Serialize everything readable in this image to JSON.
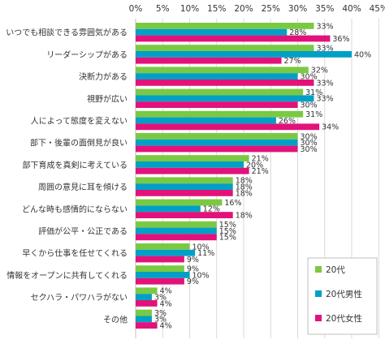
{
  "chart_data": {
    "type": "bar",
    "orientation": "horizontal",
    "title": "",
    "xlabel": "",
    "ylabel": "",
    "xlim": [
      0,
      45
    ],
    "x_ticks": [
      "0%",
      "5%",
      "10%",
      "15%",
      "20%",
      "25%",
      "30%",
      "35%",
      "40%",
      "45%"
    ],
    "grid": true,
    "legend_position": "bottom-right",
    "categories": [
      "いつでも相談できる雰囲気がある",
      "リーダーシップがある",
      "決断力がある",
      "視野が広い",
      "人によって態度を変えない",
      "部下・後輩の面倒見が良い",
      "部下育成を真剣に考えている",
      "周囲の意見に耳を傾ける",
      "どんな時も感情的にならない",
      "評価が公平・公正である",
      "早くから仕事を任せてくれる",
      "情報をオープンに共有してくれる",
      "セクハラ・パワハラがない",
      "その他"
    ],
    "series": [
      {
        "name": "20代",
        "color": "#7ac943",
        "values": [
          33,
          33,
          32,
          31,
          31,
          30,
          21,
          18,
          16,
          15,
          10,
          9,
          4,
          3
        ]
      },
      {
        "name": "20代男性",
        "color": "#00a0c6",
        "values": [
          28,
          40,
          30,
          33,
          26,
          30,
          20,
          18,
          12,
          15,
          11,
          10,
          3,
          3
        ]
      },
      {
        "name": "20代女性",
        "color": "#e2127a",
        "values": [
          36,
          27,
          33,
          30,
          34,
          30,
          21,
          18,
          18,
          15,
          9,
          9,
          4,
          4
        ]
      }
    ],
    "value_suffix": "%"
  }
}
